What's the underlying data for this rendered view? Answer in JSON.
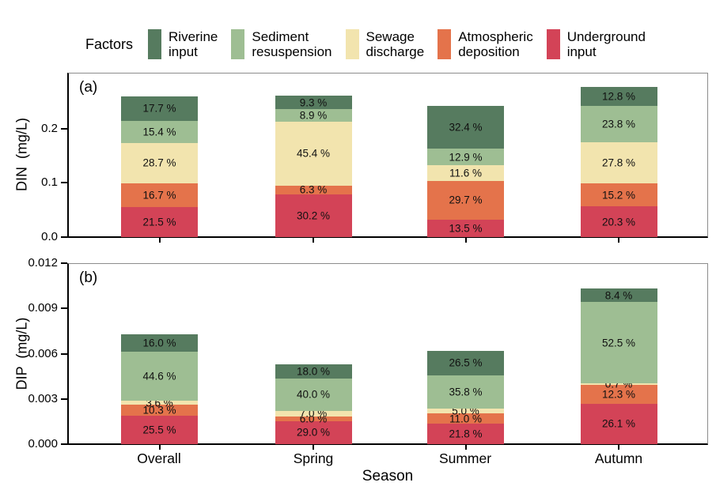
{
  "legend": {
    "title": "Factors",
    "items": [
      {
        "key": "riverine",
        "label_line1": "Riverine",
        "label_line2": "input",
        "color": "#567B5F"
      },
      {
        "key": "sediment",
        "label_line1": "Sediment",
        "label_line2": "resuspension",
        "color": "#9EBE93"
      },
      {
        "key": "sewage",
        "label_line1": "Sewage",
        "label_line2": "discharge",
        "color": "#F2E4AE"
      },
      {
        "key": "atmospheric",
        "label_line1": "Atmospheric",
        "label_line2": "deposition",
        "color": "#E4734B"
      },
      {
        "key": "underground",
        "label_line1": "Underground",
        "label_line2": "input",
        "color": "#D34357"
      }
    ]
  },
  "xaxis": {
    "label": "Season",
    "categories": [
      "Overall",
      "Spring",
      "Summer",
      "Autumn"
    ]
  },
  "chart_data": [
    {
      "type": "bar",
      "stacked": true,
      "panel_label": "(a)",
      "ylabel": "DIN  (mg/L)",
      "ylim": [
        0,
        0.303
      ],
      "yticks": [
        {
          "label": "0.0",
          "value": 0.0
        },
        {
          "label": "0.1",
          "value": 0.1
        },
        {
          "label": "0.2",
          "value": 0.2
        }
      ],
      "categories": [
        "Overall",
        "Spring",
        "Summer",
        "Autumn"
      ],
      "bar_totals_mg_per_L": [
        0.26,
        0.26,
        0.241,
        0.277
      ],
      "label_format": "{pct} %",
      "series_bottom_to_top": [
        {
          "key": "underground",
          "name": "Underground input",
          "pct": [
            21.5,
            30.2,
            13.5,
            20.3
          ]
        },
        {
          "key": "atmospheric",
          "name": "Atmospheric deposition",
          "pct": [
            16.7,
            6.3,
            29.7,
            15.2
          ]
        },
        {
          "key": "sewage",
          "name": "Sewage discharge",
          "pct": [
            28.7,
            45.4,
            11.6,
            27.8
          ]
        },
        {
          "key": "sediment",
          "name": "Sediment resuspension",
          "pct": [
            15.4,
            8.9,
            12.9,
            23.8
          ]
        },
        {
          "key": "riverine",
          "name": "Riverine input",
          "pct": [
            17.7,
            9.3,
            32.4,
            12.8
          ]
        }
      ]
    },
    {
      "type": "bar",
      "stacked": true,
      "panel_label": "(b)",
      "ylabel": "DIP  (mg/L)",
      "ylim": [
        0,
        0.012
      ],
      "yticks": [
        {
          "label": "0.000",
          "value": 0.0
        },
        {
          "label": "0.003",
          "value": 0.003
        },
        {
          "label": "0.006",
          "value": 0.006
        },
        {
          "label": "0.009",
          "value": 0.009
        },
        {
          "label": "0.012",
          "value": 0.012
        }
      ],
      "categories": [
        "Overall",
        "Spring",
        "Summer",
        "Autumn"
      ],
      "bar_totals_mg_per_L": [
        0.0073,
        0.0053,
        0.0062,
        0.0103
      ],
      "label_format": "{pct} %",
      "series_bottom_to_top": [
        {
          "key": "underground",
          "name": "Underground input",
          "pct": [
            25.5,
            29.0,
            21.8,
            26.1
          ]
        },
        {
          "key": "atmospheric",
          "name": "Atmospheric deposition",
          "pct": [
            10.3,
            6.0,
            11.0,
            12.3
          ]
        },
        {
          "key": "sewage",
          "name": "Sewage discharge",
          "pct": [
            3.6,
            7.0,
            5.0,
            0.7
          ]
        },
        {
          "key": "sediment",
          "name": "Sediment resuspension",
          "pct": [
            44.6,
            40.0,
            35.8,
            52.5
          ]
        },
        {
          "key": "riverine",
          "name": "Riverine input",
          "pct": [
            16.0,
            18.0,
            26.5,
            8.4
          ]
        }
      ]
    }
  ]
}
